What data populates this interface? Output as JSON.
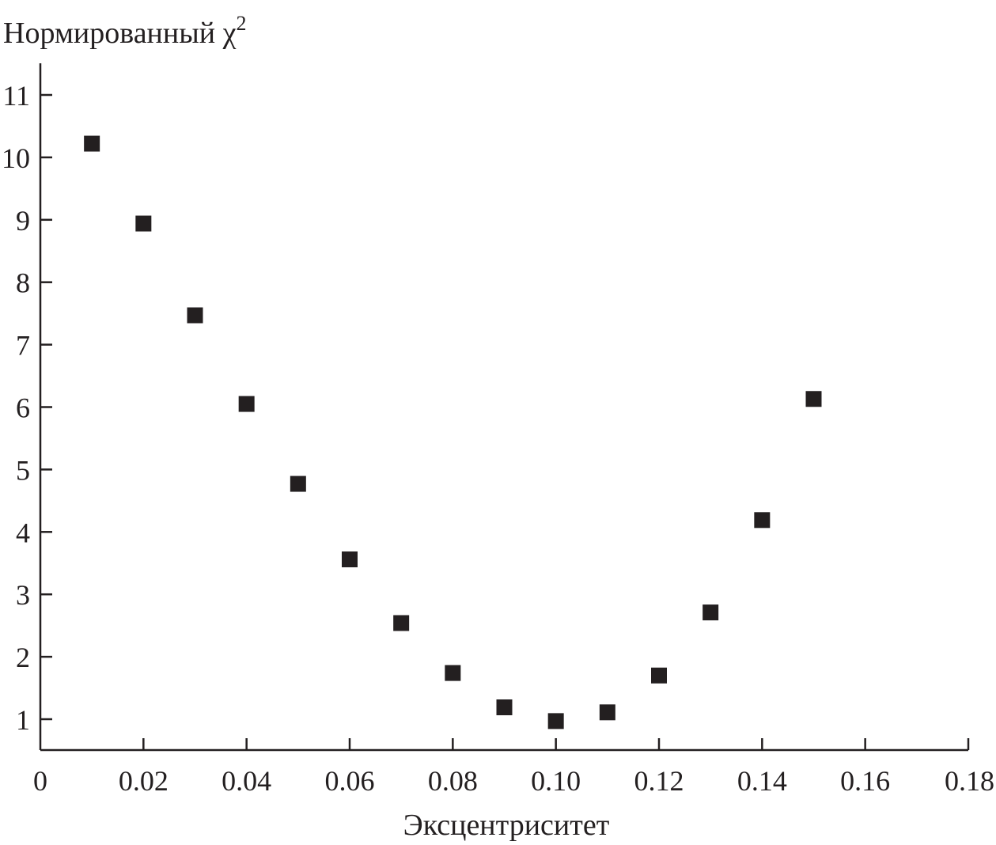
{
  "chart_data": {
    "type": "scatter",
    "xlabel": "Эксцентриситет",
    "ylabel_text": "Нормированный ",
    "ylabel_symbol": "χ",
    "ylabel_sup": "2",
    "xlim": [
      0,
      0.18
    ],
    "ylim": [
      0.5,
      11.5
    ],
    "x_ticks": [
      0,
      0.02,
      0.04,
      0.06,
      0.08,
      0.1,
      0.12,
      0.14,
      0.16,
      0.18
    ],
    "x_tick_labels": [
      "0",
      "0.02",
      "0.04",
      "0.06",
      "0.08",
      "0.10",
      "0.12",
      "0.14",
      "0.16",
      "0.18"
    ],
    "y_ticks": [
      1,
      2,
      3,
      4,
      5,
      6,
      7,
      8,
      9,
      10,
      11
    ],
    "y_tick_labels": [
      "1",
      "2",
      "3",
      "4",
      "5",
      "6",
      "7",
      "8",
      "9",
      "10",
      "11"
    ],
    "marker": "square",
    "color": "#231f20",
    "grid": false,
    "x": [
      0.01,
      0.02,
      0.03,
      0.04,
      0.05,
      0.06,
      0.07,
      0.08,
      0.09,
      0.1,
      0.11,
      0.12,
      0.13,
      0.14,
      0.15
    ],
    "y": [
      10.22,
      8.94,
      7.47,
      6.05,
      4.77,
      3.56,
      2.54,
      1.74,
      1.19,
      0.97,
      1.11,
      1.7,
      2.71,
      4.19,
      6.13
    ]
  }
}
